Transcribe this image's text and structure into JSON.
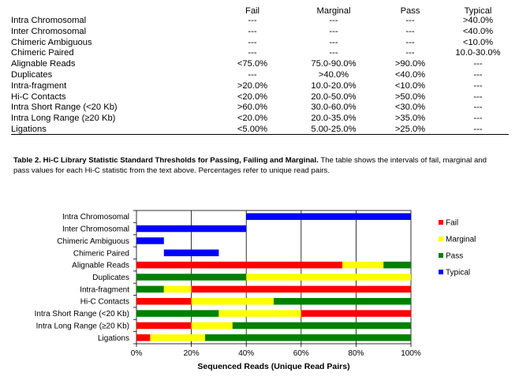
{
  "table": {
    "headers": [
      "",
      "Fail",
      "Marginal",
      "Pass",
      "Typical"
    ],
    "rows": [
      [
        "Intra Chromosomal",
        "---",
        "---",
        "---",
        ">40.0%"
      ],
      [
        "Inter Chromosomal",
        "---",
        "---",
        "---",
        "<40.0%"
      ],
      [
        "Chimeric Ambiguous",
        "---",
        "---",
        "---",
        "<10.0%"
      ],
      [
        "Chimeric Paired",
        "---",
        "---",
        "---",
        "10.0-30.0%"
      ],
      [
        "Alignable Reads",
        "<75.0%",
        "75.0-90.0%",
        ">90.0%",
        "---"
      ],
      [
        "Duplicates",
        "---",
        ">40.0%",
        "<40.0%",
        "---"
      ],
      [
        "Intra-fragment",
        ">20.0%",
        "10.0-20.0%",
        "<10.0%",
        "---"
      ],
      [
        "Hi-C Contacts",
        "<20.0%",
        "20.0-50.0%",
        ">50.0%",
        "---"
      ],
      [
        "Intra Short Range (<20 Kb)",
        ">60.0%",
        "30.0-60.0%",
        "<30.0%",
        "---"
      ],
      [
        "Intra Long Range (≥20 Kb)",
        "<20.0%",
        "20.0-35.0%",
        ">35.0%",
        "---"
      ],
      [
        "Ligations",
        "<5.00%",
        "5.00-25.0%",
        ">25.0%",
        "---"
      ]
    ]
  },
  "caption": {
    "bold": "Table 2. Hi-C Library Statistic Standard Thresholds for Passing, Failing and Marginal.",
    "text": " The table shows the intervals of fail, marginal and pass values for each Hi-C statistic from the text above. Percentages refer to unique read pairs."
  },
  "chart_data": {
    "type": "bar",
    "orientation": "horizontal",
    "categories": [
      "Intra Chromosomal",
      "Inter Chromosomal",
      "Chimeric Ambiguous",
      "Chimeric Paired",
      "Alignable Reads",
      "Duplicates",
      "Intra-fragment",
      "Hi-C Contacts",
      "Intra Short Range (<20 Kb)",
      "Intra Long Range  (≥20 Kb)",
      "Ligations"
    ],
    "segments": [
      [
        {
          "series": "Typical",
          "from": 40,
          "to": 100
        }
      ],
      [
        {
          "series": "Typical",
          "from": 0,
          "to": 40
        }
      ],
      [
        {
          "series": "Typical",
          "from": 0,
          "to": 10
        }
      ],
      [
        {
          "series": "Typical",
          "from": 10,
          "to": 30
        }
      ],
      [
        {
          "series": "Fail",
          "from": 0,
          "to": 75
        },
        {
          "series": "Marginal",
          "from": 75,
          "to": 90
        },
        {
          "series": "Pass",
          "from": 90,
          "to": 100
        }
      ],
      [
        {
          "series": "Pass",
          "from": 0,
          "to": 40
        },
        {
          "series": "Marginal",
          "from": 40,
          "to": 100
        }
      ],
      [
        {
          "series": "Pass",
          "from": 0,
          "to": 10
        },
        {
          "series": "Marginal",
          "from": 10,
          "to": 20
        },
        {
          "series": "Fail",
          "from": 20,
          "to": 100
        }
      ],
      [
        {
          "series": "Fail",
          "from": 0,
          "to": 20
        },
        {
          "series": "Marginal",
          "from": 20,
          "to": 50
        },
        {
          "series": "Pass",
          "from": 50,
          "to": 100
        }
      ],
      [
        {
          "series": "Pass",
          "from": 0,
          "to": 30
        },
        {
          "series": "Marginal",
          "from": 30,
          "to": 60
        },
        {
          "series": "Fail",
          "from": 60,
          "to": 100
        }
      ],
      [
        {
          "series": "Fail",
          "from": 0,
          "to": 20
        },
        {
          "series": "Marginal",
          "from": 20,
          "to": 35
        },
        {
          "series": "Pass",
          "from": 35,
          "to": 100
        }
      ],
      [
        {
          "series": "Fail",
          "from": 0,
          "to": 5
        },
        {
          "series": "Marginal",
          "from": 5,
          "to": 25
        },
        {
          "series": "Pass",
          "from": 25,
          "to": 100
        }
      ]
    ],
    "series": [
      {
        "name": "Fail",
        "color": "#ff0000"
      },
      {
        "name": "Marginal",
        "color": "#ffff00"
      },
      {
        "name": "Pass",
        "color": "#008000"
      },
      {
        "name": "Typical",
        "color": "#0000ff"
      }
    ],
    "xticks": [
      "0%",
      "20%",
      "40%",
      "60%",
      "80%",
      "100%"
    ],
    "xlim": [
      0,
      100
    ],
    "xlabel": "Sequenced Reads (Unique Read Pairs)",
    "ylabel": "",
    "grid": true,
    "legend_position": "right"
  }
}
